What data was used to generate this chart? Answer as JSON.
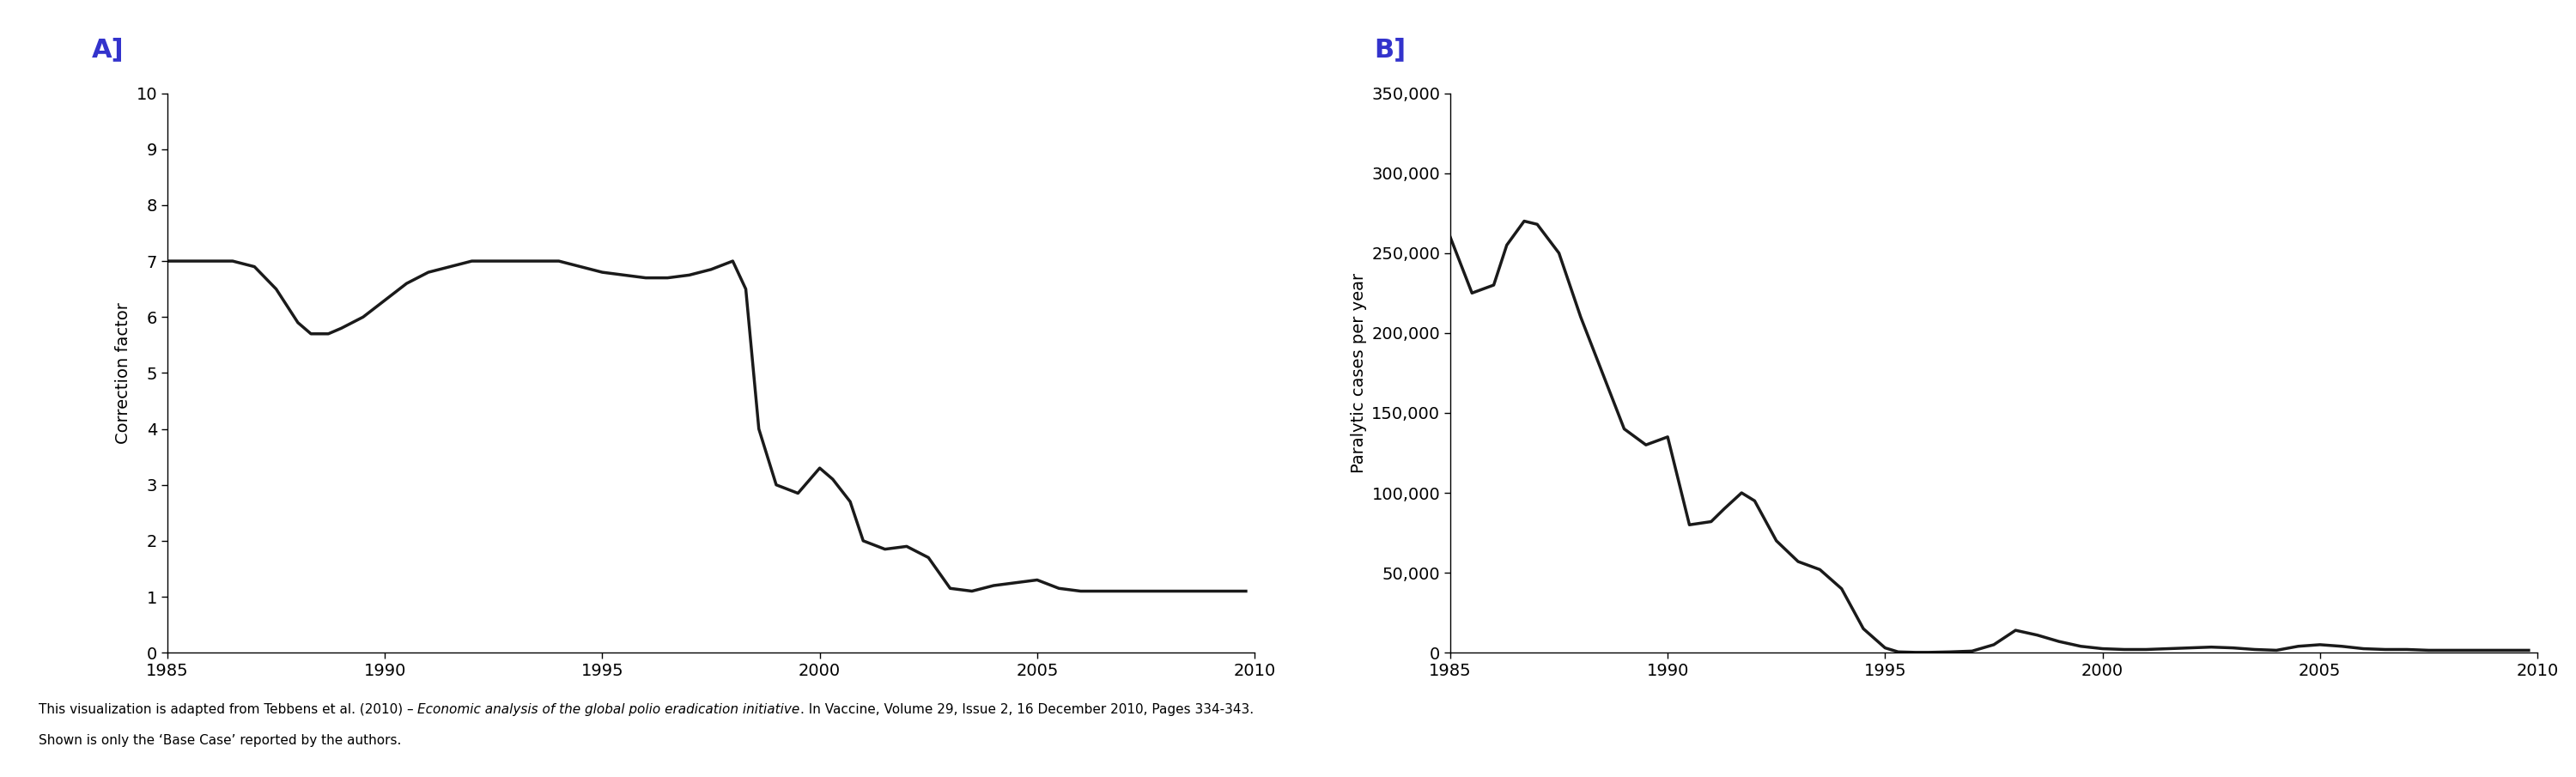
{
  "panel_a_label": "A]",
  "panel_b_label": "B]",
  "label_color": "#3333cc",
  "line_color": "#1a1a1a",
  "line_width": 2.5,
  "background_color": "#ffffff",
  "panel_a_ylabel": "Correction factor",
  "panel_b_ylabel": "Paralytic cases per year",
  "xlim": [
    1985,
    2010
  ],
  "panel_a_ylim": [
    0,
    10
  ],
  "panel_a_yticks": [
    0,
    1,
    2,
    3,
    4,
    5,
    6,
    7,
    8,
    9,
    10
  ],
  "panel_b_ylim": [
    0,
    350000
  ],
  "panel_b_yticks": [
    0,
    50000,
    100000,
    150000,
    200000,
    250000,
    300000,
    350000
  ],
  "xticks": [
    1985,
    1990,
    1995,
    2000,
    2005,
    2010
  ],
  "footnote_line1": "This visualization is adapted from Tebbens et al. (2010) – ",
  "footnote_italic": "Economic analysis of the global polio eradication initiative",
  "footnote_line1_end": ". In Vaccine, Volume 29, Issue 2, 16 December 2010, Pages 334-343.",
  "footnote_line2": "Shown is only the ‘Base Case’ reported by the authors.",
  "panel_a_x": [
    1985,
    1985.5,
    1986,
    1986.5,
    1987,
    1987.5,
    1988,
    1988.3,
    1988.7,
    1989,
    1989.5,
    1990,
    1990.5,
    1991,
    1991.5,
    1992,
    1992.5,
    1993,
    1993.5,
    1994,
    1994.5,
    1995,
    1995.5,
    1996,
    1996.5,
    1997,
    1997.5,
    1998,
    1998.3,
    1998.6,
    1999,
    1999.5,
    2000,
    2000.3,
    2000.7,
    2001,
    2001.5,
    2002,
    2002.5,
    2003,
    2003.5,
    2004,
    2004.5,
    2005,
    2005.5,
    2006,
    2006.5,
    2007,
    2007.5,
    2008,
    2008.5,
    2009,
    2009.8
  ],
  "panel_a_y": [
    7.0,
    7.0,
    7.0,
    7.0,
    6.9,
    6.5,
    5.9,
    5.7,
    5.7,
    5.8,
    6.0,
    6.3,
    6.6,
    6.8,
    6.9,
    7.0,
    7.0,
    7.0,
    7.0,
    7.0,
    6.9,
    6.8,
    6.75,
    6.7,
    6.7,
    6.75,
    6.85,
    7.0,
    6.5,
    4.0,
    3.0,
    2.85,
    3.3,
    3.1,
    2.7,
    2.0,
    1.85,
    1.9,
    1.7,
    1.15,
    1.1,
    1.2,
    1.25,
    1.3,
    1.15,
    1.1,
    1.1,
    1.1,
    1.1,
    1.1,
    1.1,
    1.1,
    1.1
  ],
  "panel_b_x": [
    1985,
    1985.5,
    1986,
    1986.3,
    1986.7,
    1987,
    1987.5,
    1988,
    1988.5,
    1989,
    1989.5,
    1990,
    1990.5,
    1991,
    1991.3,
    1991.7,
    1992,
    1992.5,
    1993,
    1993.5,
    1994,
    1994.5,
    1995,
    1995.3,
    1995.7,
    1996,
    1996.5,
    1997,
    1997.5,
    1998,
    1998.5,
    1999,
    1999.5,
    2000,
    2000.5,
    2001,
    2001.5,
    2002,
    2002.5,
    2003,
    2003.5,
    2004,
    2004.5,
    2005,
    2005.5,
    2006,
    2006.5,
    2007,
    2007.5,
    2008,
    2008.5,
    2009,
    2009.8
  ],
  "panel_b_y": [
    260000,
    225000,
    230000,
    255000,
    270000,
    268000,
    250000,
    210000,
    175000,
    140000,
    130000,
    135000,
    80000,
    82000,
    90000,
    100000,
    95000,
    70000,
    57000,
    52000,
    40000,
    15000,
    3000,
    500,
    200,
    200,
    500,
    1000,
    5000,
    14000,
    11000,
    7000,
    4000,
    2500,
    2000,
    2000,
    2500,
    3000,
    3500,
    3000,
    2000,
    1500,
    4000,
    5000,
    4000,
    2500,
    2000,
    2000,
    1500,
    1500,
    1500,
    1500,
    1500
  ]
}
